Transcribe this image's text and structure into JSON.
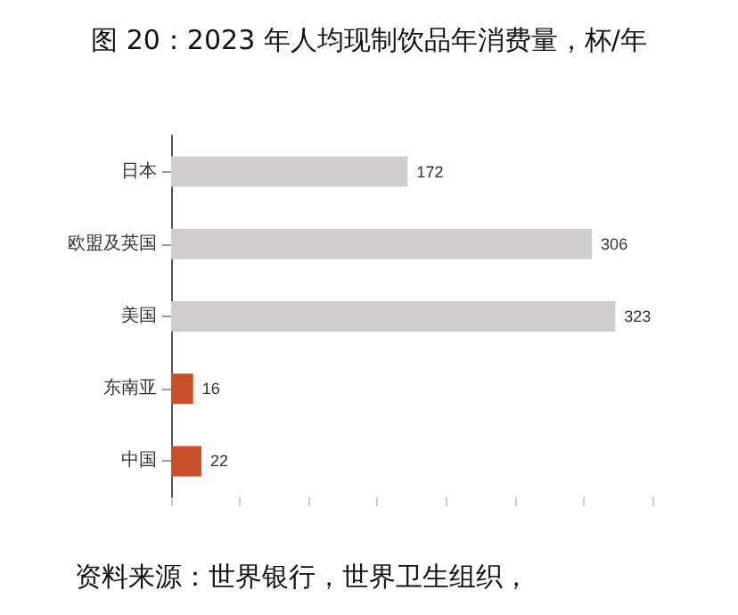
{
  "chart_data": {
    "type": "bar",
    "orientation": "horizontal",
    "title": "图 20：2023 年人均现制饮品年消费量，杯/年",
    "categories": [
      "日本",
      "欧盟及英国",
      "美国",
      "东南亚",
      "中国"
    ],
    "values": [
      172,
      306,
      323,
      16,
      22
    ],
    "colors": [
      "#cfcdce",
      "#cfcdce",
      "#cfcdce",
      "#c8512b",
      "#c8512b"
    ],
    "data_labels": true,
    "tick_labels": "y",
    "annotations": [
      "资料来源：世界银行，世界卫生组织，"
    ]
  }
}
